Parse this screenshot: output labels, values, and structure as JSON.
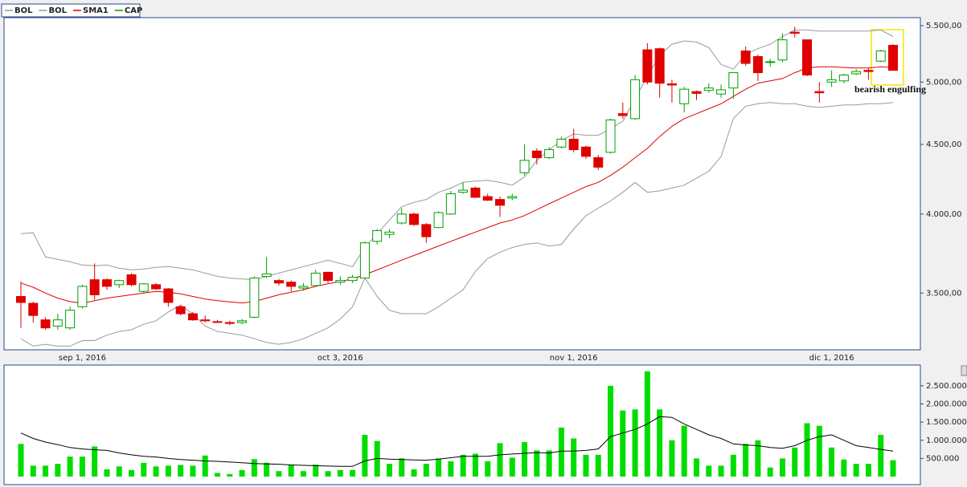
{
  "chart_data": [
    {
      "type": "candlestick",
      "name": "CAP",
      "up_color": "#00a000",
      "down_color": "#e00000",
      "log_scale": true,
      "annotation": "bearish engulfing",
      "categories": [
        null,
        null,
        null,
        null,
        null,
        "sep 1, 2016",
        null,
        null,
        null,
        null,
        null,
        null,
        null,
        null,
        null,
        null,
        null,
        null,
        null,
        null,
        null,
        null,
        null,
        null,
        null,
        null,
        "oct 3, 2016",
        null,
        null,
        null,
        null,
        null,
        null,
        null,
        null,
        null,
        null,
        null,
        null,
        null,
        null,
        null,
        null,
        null,
        null,
        "nov 1, 2016",
        null,
        null,
        null,
        null,
        null,
        null,
        null,
        null,
        null,
        null,
        null,
        null,
        null,
        null,
        null,
        null,
        null,
        null,
        null,
        null,
        "dic 1, 2016",
        null,
        null,
        null,
        null,
        null
      ],
      "open": [
        3480,
        3440,
        3345,
        3310,
        3300,
        3420,
        3580,
        3580,
        3550,
        3610,
        3510,
        3550,
        3525,
        3420,
        3380,
        3345,
        3335,
        3330,
        3330,
        3360,
        3600,
        3575,
        3565,
        3530,
        3545,
        3625,
        3565,
        3575,
        3590,
        3820,
        3865,
        3940,
        4000,
        3930,
        3910,
        4000,
        4150,
        4180,
        4120,
        4100,
        4110,
        4290,
        4450,
        4400,
        4480,
        4540,
        4480,
        4400,
        4440,
        4740,
        4700,
        5280,
        5290,
        4985,
        4820,
        4920,
        4930,
        4900,
        4950,
        5270,
        5220,
        5170,
        5190,
        5440,
        5370,
        4920,
        5000,
        5010,
        5070,
        5100,
        5180,
        5320
      ],
      "high": [
        3570,
        3450,
        3360,
        3380,
        3420,
        3550,
        3680,
        3590,
        3580,
        3620,
        3560,
        3560,
        3530,
        3430,
        3390,
        3370,
        3345,
        3340,
        3350,
        3600,
        3720,
        3585,
        3575,
        3560,
        3640,
        3630,
        3600,
        3610,
        3820,
        3900,
        3900,
        4040,
        4010,
        3940,
        4020,
        4160,
        4220,
        4190,
        4140,
        4120,
        4140,
        4500,
        4470,
        4480,
        4560,
        4620,
        4490,
        4420,
        4700,
        4830,
        5060,
        5340,
        5300,
        5020,
        4960,
        4930,
        4990,
        4980,
        5080,
        5310,
        5240,
        5200,
        5430,
        5490,
        5370,
        5000,
        5100,
        5070,
        5110,
        5120,
        5280,
        5330
      ],
      "low": [
        3300,
        3330,
        3290,
        3290,
        3290,
        3410,
        3460,
        3520,
        3530,
        3540,
        3500,
        3520,
        3420,
        3370,
        3340,
        3330,
        3328,
        3315,
        3320,
        3355,
        3590,
        3545,
        3510,
        3515,
        3540,
        3560,
        3550,
        3560,
        3585,
        3800,
        3840,
        3930,
        3920,
        3810,
        3905,
        3995,
        4140,
        4110,
        4090,
        3980,
        4095,
        4270,
        4350,
        4390,
        4470,
        4440,
        4390,
        4310,
        4430,
        4700,
        4690,
        4980,
        4870,
        4830,
        4750,
        4850,
        4910,
        4870,
        4860,
        5140,
        5010,
        5130,
        5170,
        5390,
        5050,
        4830,
        4960,
        4990,
        5060,
        5020,
        5170,
        5100
      ],
      "close": [
        3445,
        3370,
        3300,
        3345,
        3400,
        3540,
        3490,
        3540,
        3575,
        3550,
        3555,
        3525,
        3445,
        3380,
        3345,
        3340,
        3332,
        3325,
        3340,
        3590,
        3615,
        3560,
        3540,
        3540,
        3620,
        3575,
        3575,
        3595,
        3810,
        3890,
        3880,
        4000,
        3930,
        3850,
        4010,
        4140,
        4165,
        4115,
        4095,
        4060,
        4120,
        4380,
        4400,
        4460,
        4540,
        4460,
        4410,
        4330,
        4690,
        4725,
        5020,
        5000,
        4990,
        4975,
        4940,
        4905,
        4950,
        4935,
        5080,
        5160,
        5080,
        5175,
        5370,
        5430,
        5060,
        4910,
        5020,
        5060,
        5090,
        5090,
        5270,
        5100
      ],
      "overlays": [
        {
          "name": "BOL",
          "color": "#999999",
          "values": [
            3870,
            3875,
            3720,
            3705,
            3690,
            3670,
            3665,
            3670,
            3650,
            3640,
            3645,
            3655,
            3660,
            3650,
            3640,
            3620,
            3600,
            3590,
            3585,
            3580,
            3600,
            3620,
            3640,
            3660,
            3680,
            3700,
            3680,
            3660,
            3780,
            3870,
            3960,
            4050,
            4080,
            4100,
            4150,
            4180,
            4220,
            4230,
            4235,
            4220,
            4200,
            4260,
            4380,
            4460,
            4530,
            4580,
            4570,
            4570,
            4620,
            4680,
            4860,
            5050,
            5230,
            5330,
            5360,
            5350,
            5300,
            5150,
            5110,
            5240,
            5290,
            5330,
            5400,
            5460,
            5460,
            5450,
            5450,
            5450,
            5450,
            5450,
            5460,
            5400
          ]
        },
        {
          "name": "BOL",
          "color": "#999999",
          "values": [
            3240,
            3200,
            3210,
            3200,
            3200,
            3230,
            3230,
            3260,
            3280,
            3290,
            3320,
            3340,
            3390,
            3430,
            3380,
            3310,
            3280,
            3270,
            3260,
            3240,
            3220,
            3210,
            3220,
            3240,
            3270,
            3300,
            3350,
            3420,
            3590,
            3480,
            3400,
            3380,
            3380,
            3380,
            3420,
            3470,
            3520,
            3630,
            3710,
            3750,
            3780,
            3800,
            3810,
            3790,
            3800,
            3900,
            3990,
            4040,
            4090,
            4150,
            4220,
            4150,
            4160,
            4180,
            4200,
            4250,
            4300,
            4410,
            4700,
            4800,
            4820,
            4830,
            4820,
            4820,
            4800,
            4790,
            4800,
            4810,
            4810,
            4820,
            4820,
            4830
          ]
        },
        {
          "name": "SMA1",
          "color": "#e00000",
          "values": [
            3560,
            3535,
            3500,
            3470,
            3450,
            3440,
            3455,
            3470,
            3480,
            3490,
            3500,
            3510,
            3505,
            3495,
            3480,
            3465,
            3455,
            3448,
            3442,
            3450,
            3470,
            3490,
            3505,
            3520,
            3540,
            3555,
            3570,
            3585,
            3610,
            3640,
            3670,
            3700,
            3730,
            3760,
            3790,
            3820,
            3850,
            3880,
            3910,
            3940,
            3960,
            3990,
            4030,
            4070,
            4110,
            4150,
            4190,
            4220,
            4270,
            4330,
            4400,
            4470,
            4560,
            4640,
            4700,
            4740,
            4780,
            4820,
            4880,
            4940,
            4990,
            5010,
            5030,
            5080,
            5120,
            5130,
            5130,
            5125,
            5120,
            5120,
            5130,
            5125
          ]
        }
      ],
      "ylim": [
        3180,
        5575
      ],
      "yticks": [
        {
          "value": 3500,
          "label": "3.500,00"
        },
        {
          "value": 4000,
          "label": "4.000,00"
        },
        {
          "value": 4500,
          "label": "4.500,00"
        },
        {
          "value": 5000,
          "label": "5.000,00"
        },
        {
          "value": 5500,
          "label": "5.500,00"
        }
      ]
    },
    {
      "type": "bar",
      "color": "#00dd00",
      "line_color": "#000000",
      "values": [
        900000,
        300000,
        300000,
        350000,
        550000,
        550000,
        830000,
        200000,
        280000,
        180000,
        380000,
        280000,
        300000,
        320000,
        300000,
        580000,
        100000,
        70000,
        180000,
        480000,
        380000,
        150000,
        330000,
        150000,
        330000,
        150000,
        180000,
        180000,
        1150000,
        980000,
        350000,
        500000,
        200000,
        350000,
        500000,
        420000,
        600000,
        630000,
        420000,
        920000,
        520000,
        950000,
        720000,
        720000,
        1350000,
        1050000,
        600000,
        600000,
        2500000,
        1820000,
        1850000,
        2900000,
        1850000,
        1000000,
        1400000,
        500000,
        300000,
        300000,
        600000,
        900000,
        1000000,
        250000,
        500000,
        800000,
        1470000,
        1400000,
        800000,
        470000,
        350000,
        350000,
        1150000,
        450000
      ],
      "line_values": [
        1200000,
        1050000,
        950000,
        880000,
        800000,
        760000,
        740000,
        720000,
        650000,
        600000,
        560000,
        540000,
        500000,
        470000,
        450000,
        430000,
        420000,
        400000,
        380000,
        360000,
        350000,
        340000,
        320000,
        310000,
        300000,
        290000,
        280000,
        280000,
        430000,
        500000,
        480000,
        470000,
        460000,
        450000,
        480000,
        520000,
        560000,
        560000,
        560000,
        600000,
        620000,
        640000,
        660000,
        650000,
        700000,
        700000,
        720000,
        760000,
        1100000,
        1200000,
        1300000,
        1450000,
        1650000,
        1630000,
        1450000,
        1300000,
        1150000,
        1050000,
        900000,
        870000,
        850000,
        800000,
        780000,
        850000,
        1000000,
        1100000,
        1150000,
        1000000,
        850000,
        800000,
        750000,
        700000
      ],
      "ylim": [
        0,
        3050000
      ],
      "yticks": [
        {
          "value": 500000,
          "label": "500.000"
        },
        {
          "value": 1000000,
          "label": "1.000.000"
        },
        {
          "value": 1500000,
          "label": "1.500.000"
        },
        {
          "value": 2000000,
          "label": "2.000.000"
        },
        {
          "value": 2500000,
          "label": "2.500.000"
        }
      ]
    }
  ]
}
